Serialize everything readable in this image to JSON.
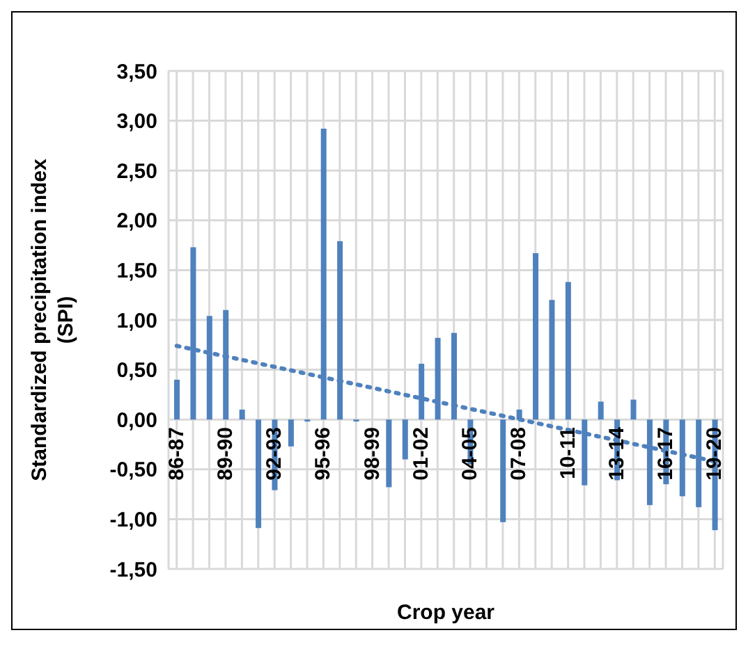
{
  "chart_data": {
    "type": "bar",
    "xlabel": "Crop year",
    "ylabel": "Standardized precipitation index (SPI)",
    "categories": [
      "86-87",
      null,
      null,
      "89-90",
      null,
      null,
      "92-93",
      null,
      null,
      "95-96",
      null,
      null,
      "98-99",
      null,
      null,
      "01-02",
      null,
      null,
      "04-05",
      null,
      null,
      "07-08",
      null,
      null,
      "10-11",
      null,
      null,
      "13-14",
      null,
      null,
      "16-17",
      null,
      null,
      "19-20"
    ],
    "series": [
      {
        "color": "#4f81bd",
        "values": [
          0.4,
          1.73,
          1.04,
          1.1,
          0.1,
          -1.09,
          -0.71,
          -0.27,
          -0.02,
          2.92,
          1.79,
          -0.02,
          null,
          -0.68,
          -0.4,
          0.56,
          0.82,
          0.87,
          -0.45,
          0.0,
          -1.03,
          0.1,
          1.67,
          1.2,
          1.38,
          -0.66,
          0.18,
          -0.61,
          0.2,
          -0.86,
          -0.65,
          -0.77,
          -0.88,
          -1.11
        ]
      },
      {
        "type": "line",
        "color": "#4f81bd",
        "line_style": "dotted",
        "marker": "none",
        "x": [
          "86-87",
          "19-20"
        ],
        "values": [
          0.74,
          -0.42
        ]
      }
    ],
    "ylim": [
      -1.5,
      3.5
    ],
    "yticks": [
      {
        "value": -1.5,
        "label": "-1,50"
      },
      {
        "value": -1,
        "label": "-1,00"
      },
      {
        "value": -0.5,
        "label": "-0,50"
      },
      {
        "value": 0,
        "label": "0,00"
      },
      {
        "value": 0.5,
        "label": "0,50"
      },
      {
        "value": 1,
        "label": "1,00"
      },
      {
        "value": 1.5,
        "label": "1,50"
      },
      {
        "value": 2,
        "label": "2,00"
      },
      {
        "value": 2.5,
        "label": "2,50"
      },
      {
        "value": 3,
        "label": "3,00"
      },
      {
        "value": 3.5,
        "label": "3,50"
      }
    ],
    "grid": true
  }
}
